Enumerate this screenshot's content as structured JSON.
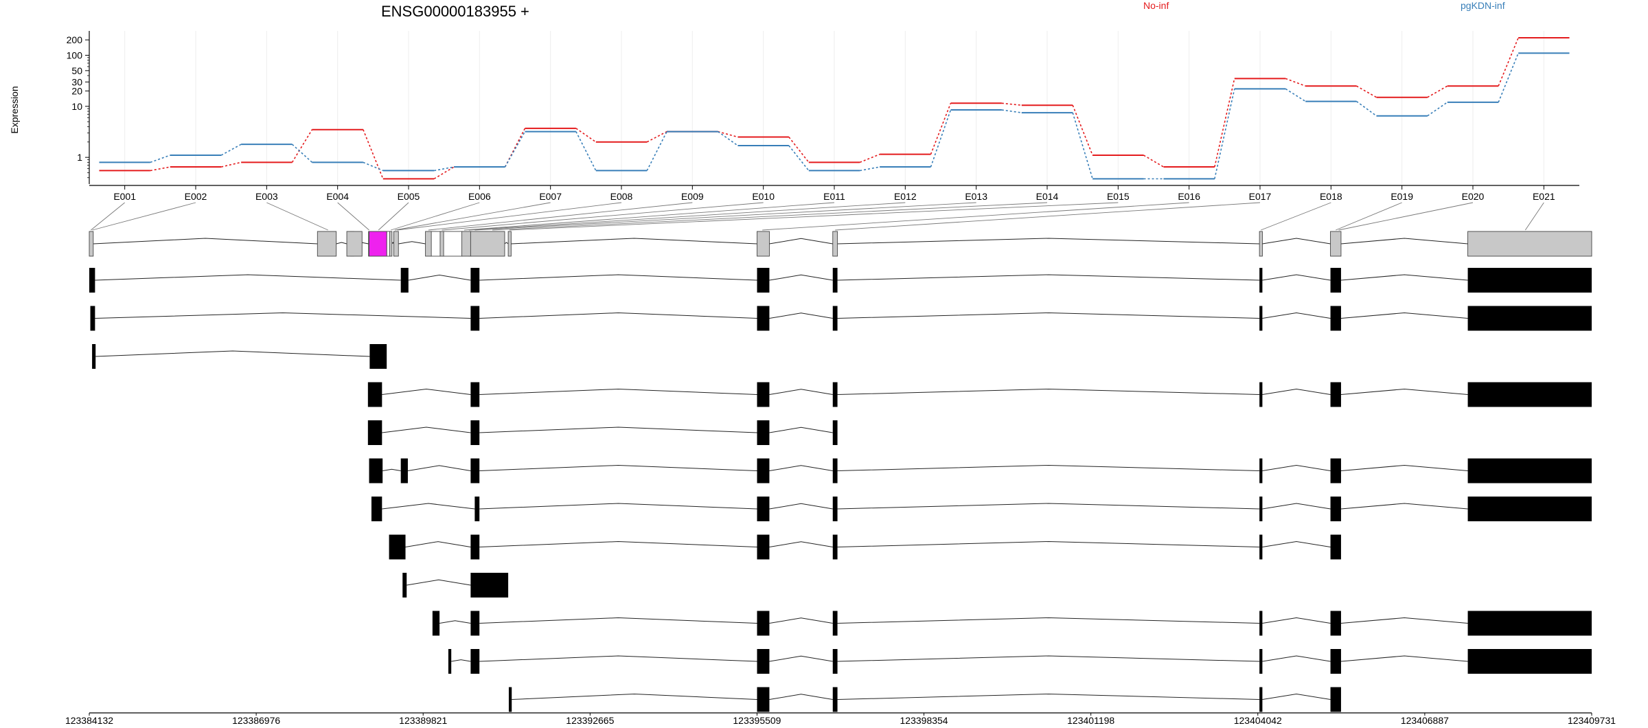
{
  "chart_data": {
    "type": "line",
    "title": "ENSG00000183955 +",
    "ylabel": "Expression",
    "y_scale": "log",
    "ylim": [
      0.3,
      300
    ],
    "yticks": [
      1,
      10,
      20,
      30,
      50,
      100,
      200
    ],
    "grid": true,
    "legend_placement": "top-right",
    "categories": [
      "E001",
      "E002",
      "E003",
      "E004",
      "E005",
      "E006",
      "E007",
      "E008",
      "E009",
      "E010",
      "E011",
      "E012",
      "E013",
      "E014",
      "E015",
      "E016",
      "E017",
      "E018",
      "E019",
      "E020",
      "E021"
    ],
    "series": [
      {
        "name": "No-inf",
        "color": "#e41a1c",
        "values": [
          0.55,
          0.65,
          0.8,
          3.5,
          0.38,
          0.65,
          3.7,
          2.0,
          3.2,
          2.5,
          0.8,
          1.15,
          11.5,
          10.5,
          1.1,
          0.65,
          35,
          25,
          15,
          25,
          220
        ]
      },
      {
        "name": "pgKDN-inf",
        "color": "#377eb8",
        "values": [
          0.8,
          1.1,
          1.8,
          0.8,
          0.55,
          0.65,
          3.2,
          0.55,
          3.2,
          1.7,
          0.55,
          0.65,
          8.5,
          7.5,
          0.38,
          0.38,
          22,
          12.5,
          6.5,
          12,
          110
        ]
      }
    ],
    "genome": {
      "start": 123384132,
      "end": 123409731,
      "tick_labels": [
        "123384132",
        "123386976",
        "123389821",
        "123392665",
        "123395509",
        "123398354",
        "123401198",
        "123404042",
        "123406887",
        "123409731"
      ],
      "highlighted_exon": "E004",
      "highlight_color": "#ee22ee",
      "exon_bins": [
        [
          123384132,
          123384200
        ],
        [
          123388020,
          123388340
        ],
        [
          123388520,
          123388780
        ],
        [
          123388890,
          123389200
        ],
        [
          123389250,
          123389290
        ],
        [
          123389320,
          123389400
        ],
        [
          123389860,
          123389960
        ],
        [
          123390110,
          123390170
        ],
        [
          123390480,
          123390630
        ],
        [
          123390630,
          123391210
        ],
        [
          123391270,
          123391320
        ],
        [
          123395510,
          123395720
        ],
        [
          123396800,
          123396880
        ],
        [
          123404070,
          123404120
        ],
        [
          123405280,
          123405460
        ],
        [
          123407620,
          123409731
        ]
      ],
      "exon_gaps": [
        [
          123389950,
          123390115
        ],
        [
          123390155,
          123390490
        ],
        [
          123390600,
          123390640
        ],
        [
          123388580,
          123388640
        ],
        [
          123389180,
          123389260
        ]
      ],
      "exon_leaders": [
        {
          "label": "E001",
          "pos": 123384160
        },
        {
          "label": "E002",
          "pos": 123384185
        },
        {
          "label": "E003",
          "pos": 123388200
        },
        {
          "label": "E004",
          "pos": 123388900
        },
        {
          "label": "E005",
          "pos": 123389060
        },
        {
          "label": "E006",
          "pos": 123389270
        },
        {
          "label": "E007",
          "pos": 123389340
        },
        {
          "label": "E008",
          "pos": 123389380
        },
        {
          "label": "E009",
          "pos": 123389910
        },
        {
          "label": "E010",
          "pos": 123390140
        },
        {
          "label": "E011",
          "pos": 123390520
        },
        {
          "label": "E012",
          "pos": 123390600
        },
        {
          "label": "E013",
          "pos": 123390700
        },
        {
          "label": "E014",
          "pos": 123391000
        },
        {
          "label": "E015",
          "pos": 123391290
        },
        {
          "label": "E016",
          "pos": 123395600
        },
        {
          "label": "E017",
          "pos": 123396840
        },
        {
          "label": "E018",
          "pos": 123404095
        },
        {
          "label": "E019",
          "pos": 123405370
        },
        {
          "label": "E020",
          "pos": 123405420
        },
        {
          "label": "E021",
          "pos": 123408600
        }
      ],
      "transcripts": [
        [
          [
            123384132,
            123384230
          ],
          [
            123389440,
            123389570
          ],
          [
            123390630,
            123390780
          ],
          [
            123395510,
            123395720
          ],
          [
            123396800,
            123396880
          ],
          [
            123404070,
            123404120
          ],
          [
            123405280,
            123405460
          ],
          [
            123407620,
            123409731
          ]
        ],
        [
          [
            123384150,
            123384230
          ],
          [
            123390630,
            123390780
          ],
          [
            123395510,
            123395720
          ],
          [
            123396800,
            123396880
          ],
          [
            123404070,
            123404120
          ],
          [
            123405280,
            123405460
          ],
          [
            123407620,
            123409731
          ]
        ],
        [
          [
            123384180,
            123384240
          ],
          [
            123388910,
            123389200
          ]
        ],
        [
          [
            123388880,
            123389120
          ],
          [
            123390630,
            123390780
          ],
          [
            123395510,
            123395720
          ],
          [
            123396800,
            123396880
          ],
          [
            123404070,
            123404120
          ],
          [
            123405280,
            123405460
          ],
          [
            123407620,
            123409731
          ]
        ],
        [
          [
            123388880,
            123389120
          ],
          [
            123390630,
            123390780
          ],
          [
            123395510,
            123395720
          ],
          [
            123396800,
            123396880
          ]
        ],
        [
          [
            123388900,
            123389130
          ],
          [
            123389440,
            123389560
          ],
          [
            123390630,
            123390780
          ],
          [
            123395510,
            123395720
          ],
          [
            123396800,
            123396880
          ],
          [
            123404070,
            123404120
          ],
          [
            123405280,
            123405460
          ],
          [
            123407620,
            123409731
          ]
        ],
        [
          [
            123388940,
            123389120
          ],
          [
            123390700,
            123390780
          ],
          [
            123395510,
            123395720
          ],
          [
            123396800,
            123396880
          ],
          [
            123404070,
            123404120
          ],
          [
            123405280,
            123405460
          ],
          [
            123407620,
            123409731
          ]
        ],
        [
          [
            123389240,
            123389520
          ],
          [
            123390630,
            123390780
          ],
          [
            123395510,
            123395720
          ],
          [
            123396800,
            123396880
          ],
          [
            123404070,
            123404120
          ],
          [
            123405280,
            123405460
          ]
        ],
        [
          [
            123389470,
            123389540
          ],
          [
            123390630,
            123391270
          ]
        ],
        [
          [
            123389980,
            123390100
          ],
          [
            123390630,
            123390780
          ],
          [
            123395510,
            123395720
          ],
          [
            123396800,
            123396880
          ],
          [
            123404070,
            123404120
          ],
          [
            123405280,
            123405460
          ],
          [
            123407620,
            123409731
          ]
        ],
        [
          [
            123390250,
            123390300
          ],
          [
            123390630,
            123390780
          ],
          [
            123395510,
            123395720
          ],
          [
            123396800,
            123396880
          ],
          [
            123404070,
            123404120
          ],
          [
            123405280,
            123405460
          ],
          [
            123407620,
            123409731
          ]
        ],
        [
          [
            123391280,
            123391330
          ],
          [
            123395510,
            123395720
          ],
          [
            123396800,
            123396880
          ],
          [
            123404070,
            123404120
          ],
          [
            123405280,
            123405460
          ]
        ]
      ]
    }
  }
}
